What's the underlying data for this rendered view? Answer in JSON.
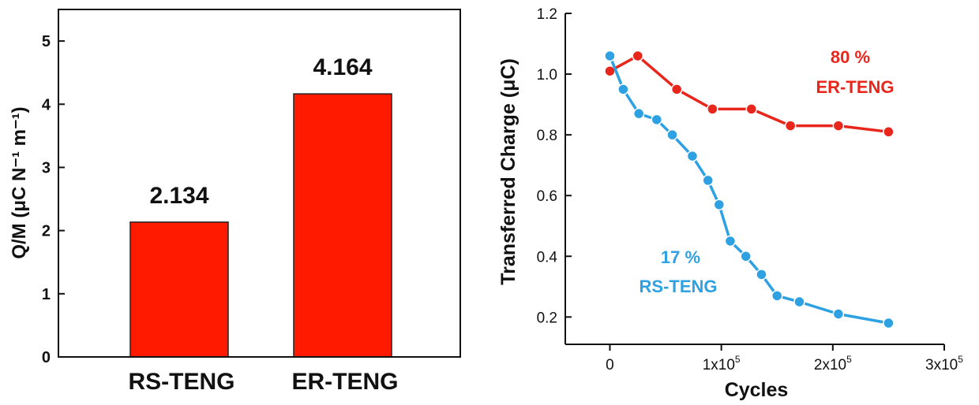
{
  "chart_data": [
    {
      "type": "bar",
      "categories": [
        "RS-TENG",
        "ER-TENG"
      ],
      "values": [
        2.134,
        4.164
      ],
      "data_labels": [
        "2.134",
        "4.164"
      ],
      "ylabel": "Q/M (μC N⁻¹ m⁻¹)",
      "ylim": [
        0,
        5.5
      ],
      "yticks": [
        0,
        1,
        2,
        3,
        4,
        5
      ],
      "bar_color": "#ff1a00"
    },
    {
      "type": "line",
      "xlabel": "Cycles",
      "ylabel": "Transferred Charge (μC)",
      "xlim": [
        -40000,
        300000
      ],
      "ylim": [
        0.11,
        1.2
      ],
      "xticks": [
        0,
        100000,
        200000,
        300000
      ],
      "xtick_labels": [
        "0",
        "1x10",
        "2x10",
        "3x10"
      ],
      "xtick_exponent": "5",
      "yticks": [
        0.2,
        0.4,
        0.6,
        0.8,
        1.0,
        1.2
      ],
      "ytick_labels": [
        "0.2",
        "0.4",
        "0.6",
        "0.8",
        "1.0",
        "1.2"
      ],
      "series": [
        {
          "name": "ER-TENG",
          "color": "#e8261c",
          "annotation": [
            "80 %",
            "ER-TENG"
          ],
          "x": [
            0,
            25000,
            60000,
            92000,
            127000,
            162000,
            205000,
            250000
          ],
          "y": [
            1.01,
            1.06,
            0.95,
            0.885,
            0.885,
            0.83,
            0.83,
            0.81
          ]
        },
        {
          "name": "RS-TENG",
          "color": "#2ea1e2",
          "annotation": [
            "17 %",
            "RS-TENG"
          ],
          "x": [
            0,
            12000,
            26000,
            42000,
            56000,
            74000,
            88000,
            98000,
            108000,
            122000,
            136000,
            150000,
            170000,
            205000,
            250000
          ],
          "y": [
            1.06,
            0.95,
            0.87,
            0.85,
            0.8,
            0.73,
            0.65,
            0.57,
            0.45,
            0.4,
            0.34,
            0.27,
            0.25,
            0.21,
            0.18
          ]
        }
      ]
    }
  ]
}
